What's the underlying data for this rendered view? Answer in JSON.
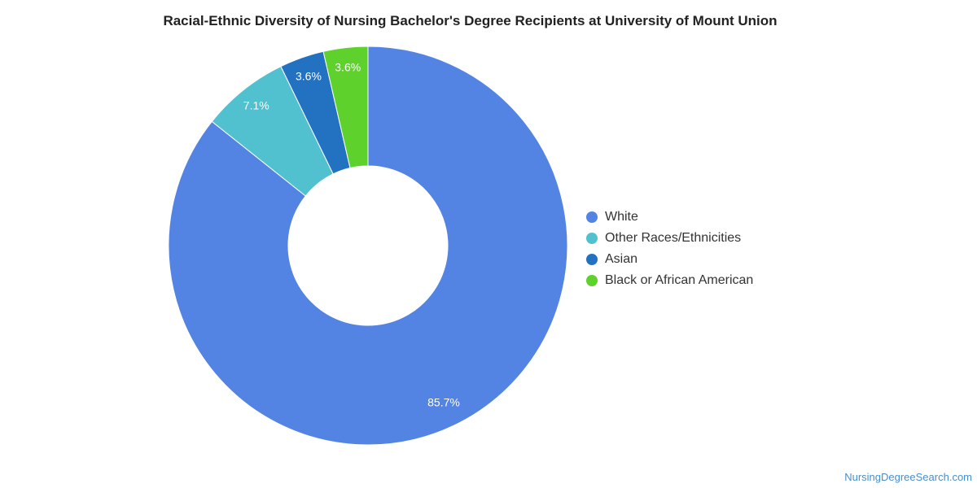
{
  "chart_data": {
    "type": "pie",
    "title": "Racial-Ethnic Diversity of Nursing Bachelor's Degree Recipients at University of Mount Union",
    "donut": true,
    "legend_position": "right",
    "slices": [
      {
        "label": "White",
        "value": 85.7,
        "display": "85.7%",
        "color": "#5484e3"
      },
      {
        "label": "Other Races/Ethnicities",
        "value": 7.1,
        "display": "7.1%",
        "color": "#52c1cf"
      },
      {
        "label": "Asian",
        "value": 3.6,
        "display": "3.6%",
        "color": "#2372c2"
      },
      {
        "label": "Black or African American",
        "value": 3.6,
        "display": "3.6%",
        "color": "#5ed12c"
      }
    ]
  },
  "watermark": "NursingDegreeSearch.com"
}
